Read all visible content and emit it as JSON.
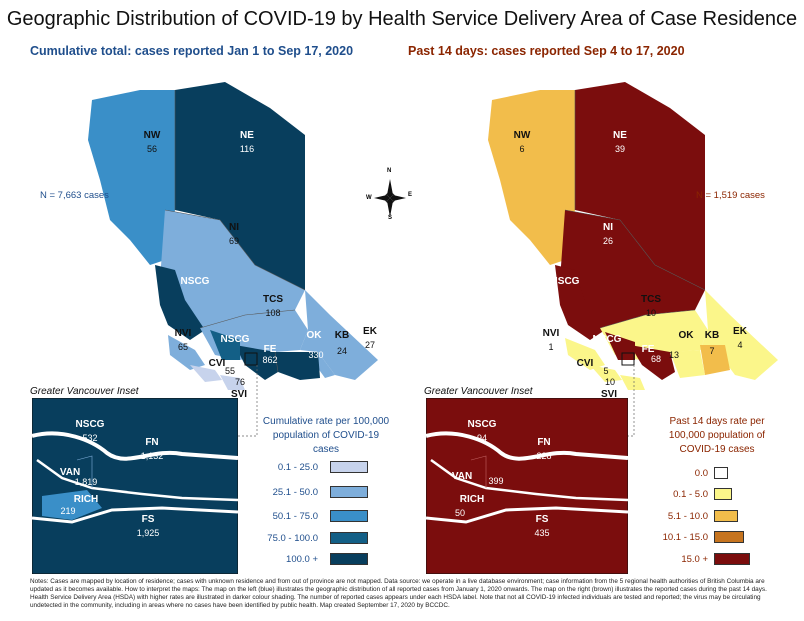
{
  "title": "Geographic Distribution of COVID-19 by Health Service Delivery Area of Case Residence",
  "left_map": {
    "subtitle": "Cumulative total: cases reported Jan 1 to Sep 17, 2020",
    "n_label": "N = 7,663 cases",
    "regions": [
      {
        "name": "NW",
        "value": "56"
      },
      {
        "name": "NE",
        "value": "116"
      },
      {
        "name": "NI",
        "value": "69"
      },
      {
        "name": "NSCG",
        "value": ""
      },
      {
        "name": "TCS",
        "value": "108"
      },
      {
        "name": "NVI",
        "value": "65"
      },
      {
        "name": "NSCG",
        "value": ""
      },
      {
        "name": "FE",
        "value": "862"
      },
      {
        "name": "OK",
        "value": "330"
      },
      {
        "name": "KB",
        "value": "24"
      },
      {
        "name": "EK",
        "value": "27"
      },
      {
        "name": "CVI",
        "value": "55"
      },
      {
        "name": "",
        "value": "76"
      },
      {
        "name": "SVI",
        "value": ""
      }
    ],
    "inset_title": "Greater Vancouver Inset",
    "inset_regions": [
      {
        "name": "NSCG",
        "value": "532"
      },
      {
        "name": "FN",
        "value": "1,132"
      },
      {
        "name": "VAN",
        "value": "1,819"
      },
      {
        "name": "RICH",
        "value": "219"
      },
      {
        "name": "FS",
        "value": "1,925"
      }
    ],
    "legend_title": "Cumulative rate per 100,000 population of COVID-19 cases",
    "legend": [
      {
        "label": "0.1 - 25.0",
        "color": "#c7d3ec"
      },
      {
        "label": "25.1 - 50.0",
        "color": "#7eaedb"
      },
      {
        "label": "50.1 - 75.0",
        "color": "#3a8fc8"
      },
      {
        "label": "75.0 - 100.0",
        "color": "#135f86"
      },
      {
        "label": "100.0 +",
        "color": "#083e5d"
      }
    ]
  },
  "right_map": {
    "subtitle": "Past 14 days: cases reported Sep 4 to 17, 2020",
    "n_label": "N = 1,519 cases",
    "regions": [
      {
        "name": "NW",
        "value": "6"
      },
      {
        "name": "NE",
        "value": "39"
      },
      {
        "name": "NI",
        "value": "26"
      },
      {
        "name": "NSCG",
        "value": ""
      },
      {
        "name": "TCS",
        "value": "10"
      },
      {
        "name": "NVI",
        "value": "1"
      },
      {
        "name": "NSCG",
        "value": ""
      },
      {
        "name": "FE",
        "value": "68"
      },
      {
        "name": "OK",
        "value": "13"
      },
      {
        "name": "KB",
        "value": "7"
      },
      {
        "name": "EK",
        "value": "4"
      },
      {
        "name": "CVI",
        "value": "5"
      },
      {
        "name": "",
        "value": "10"
      },
      {
        "name": "SVI",
        "value": ""
      }
    ],
    "inset_title": "Greater Vancouver Inset",
    "inset_regions": [
      {
        "name": "NSCG",
        "value": "94"
      },
      {
        "name": "FN",
        "value": "228"
      },
      {
        "name": "VAN",
        "value": "399"
      },
      {
        "name": "RICH",
        "value": "50"
      },
      {
        "name": "FS",
        "value": "435"
      }
    ],
    "legend_title": "Past 14 days rate per 100,000 population of COVID-19 cases",
    "legend": [
      {
        "label": "0.0",
        "color": "#ffffff"
      },
      {
        "label": "0.1 - 5.0",
        "color": "#fbf68a"
      },
      {
        "label": "5.1 - 10.0",
        "color": "#f2bd4b"
      },
      {
        "label": "10.1 - 15.0",
        "color": "#c6741f"
      },
      {
        "label": "15.0 +",
        "color": "#7b0d0d"
      }
    ]
  },
  "compass": {
    "n": "N",
    "s": "S",
    "e": "E",
    "w": "W"
  },
  "notes": "Notes: Cases are mapped by location of residence; cases with unknown residence and from out of province are not mapped. Data source: we operate in a live database environment; case information from the 5 regional health authorities of British Columbia are updated as it becomes available. How to interpret the maps: The map on the left (blue) illustrates the geographic distribution of all reported cases from January 1, 2020 onwards. The map on the right (brown) illustrates the reported cases during the past 14 days. Health Service Delivery Area (HSDA) with higher rates are illustrated in darker colour shading. The number of reported cases appears under each HSDA label. Note that not all COVID-19 infected individuals are tested and reported; the virus may be circulating undetected in the community, including in areas where no cases have been identified by public health. Map created September 17, 2020 by BCCDC."
}
